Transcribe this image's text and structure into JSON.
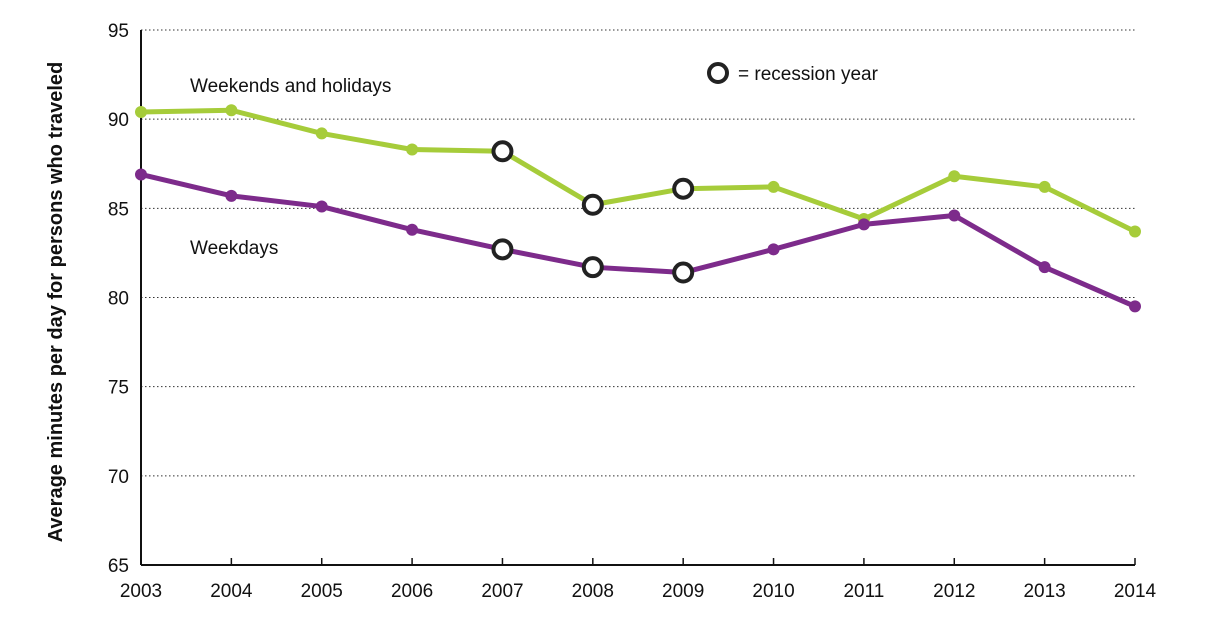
{
  "chart_data": {
    "type": "line",
    "ylabel": "Average minutes per day for persons who traveled",
    "xlabel": "",
    "x": [
      "2003",
      "2004",
      "2005",
      "2006",
      "2007",
      "2008",
      "2009",
      "2010",
      "2011",
      "2012",
      "2013",
      "2014"
    ],
    "ylim": [
      65,
      95
    ],
    "yticks": [
      "65",
      "70",
      "75",
      "80",
      "85",
      "90",
      "95"
    ],
    "grid": "horizontal dotted",
    "series": [
      {
        "name": "Weekends and holidays",
        "color": "#a6cc3a",
        "values": [
          90.4,
          90.5,
          89.2,
          88.3,
          88.2,
          85.2,
          86.1,
          86.2,
          84.4,
          86.8,
          86.2,
          83.7
        ]
      },
      {
        "name": "Weekdays",
        "color": "#7d2b8b",
        "values": [
          86.9,
          85.7,
          85.1,
          83.8,
          82.7,
          81.7,
          81.4,
          82.7,
          84.1,
          84.6,
          81.7,
          79.5
        ]
      }
    ],
    "recession_years": [
      "2007",
      "2008",
      "2009"
    ],
    "legend": {
      "marker": "open-circle-icon",
      "text": "= recession year",
      "placement": "top-center"
    }
  }
}
